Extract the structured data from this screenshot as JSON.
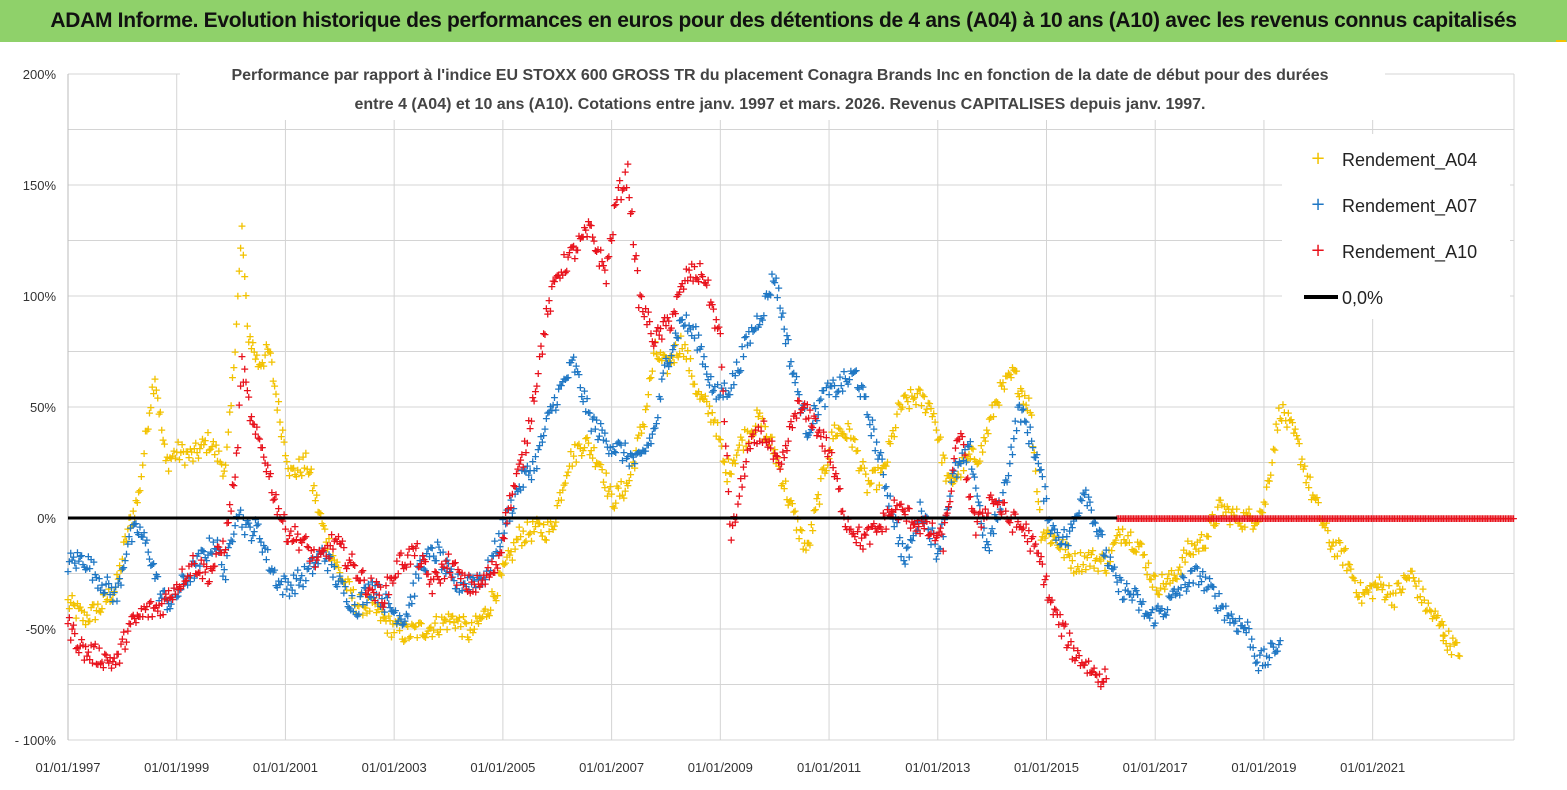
{
  "header": {
    "title": "ADAM Informe. Evolution historique des performances en euros pour des détentions de 4 ans (A04) à 10 ans (A10) avec les revenus connus capitalisés"
  },
  "chart_data": {
    "type": "scatter",
    "title_line1": "Performance par rapport à l'indice EU STOXX 600 GROSS TR  du placement Conagra Brands Inc en fonction de la date de début pour des durées",
    "title_line2": "entre 4 (A04) et 10 ans (A10). Cotations entre janv. 1997 et mars. 2026. Revenus CAPITALISES depuis janv. 1997.",
    "xlabel": "",
    "ylabel": "",
    "xlim": [
      1997.0,
      2023.6
    ],
    "ylim": [
      -100,
      200
    ],
    "grid": true,
    "y_ticks": [
      {
        "value": 200,
        "label": "200%"
      },
      {
        "value": 150,
        "label": "150%"
      },
      {
        "value": 100,
        "label": "100%"
      },
      {
        "value": 50,
        "label": "50%"
      },
      {
        "value": 0,
        "label": "0%"
      },
      {
        "value": -50,
        "label": "-50%"
      },
      {
        "value": -100,
        "label": "- 100%"
      }
    ],
    "x_ticks": [
      {
        "value": 1997,
        "label": "01/01/1997"
      },
      {
        "value": 1999,
        "label": "01/01/1999"
      },
      {
        "value": 2001,
        "label": "01/01/2001"
      },
      {
        "value": 2003,
        "label": "01/01/2003"
      },
      {
        "value": 2005,
        "label": "01/01/2005"
      },
      {
        "value": 2007,
        "label": "01/01/2007"
      },
      {
        "value": 2009,
        "label": "01/01/2009"
      },
      {
        "value": 2011,
        "label": "01/01/2011"
      },
      {
        "value": 2013,
        "label": "01/01/2013"
      },
      {
        "value": 2015,
        "label": "01/01/2015"
      },
      {
        "value": 2017,
        "label": "01/01/2017"
      },
      {
        "value": 2019,
        "label": "01/01/2019"
      },
      {
        "value": 2021,
        "label": "01/01/2021"
      }
    ],
    "legend_position": "top-right",
    "series": [
      {
        "name": "Rendement_A04",
        "color": "#f2c200",
        "marker": "+",
        "x": [
          1997.0,
          1997.3,
          1997.6,
          1997.9,
          1998.1,
          1998.3,
          1998.5,
          1998.6,
          1998.8,
          1999.0,
          1999.3,
          1999.6,
          1999.9,
          2000.0,
          2000.1,
          2000.2,
          2000.3,
          2000.5,
          2000.7,
          2000.9,
          2001.1,
          2001.4,
          2001.7,
          2002.0,
          2002.3,
          2002.6,
          2002.9,
          2003.2,
          2003.5,
          2003.8,
          2004.1,
          2004.4,
          2004.7,
          2005.0,
          2005.3,
          2005.6,
          2005.9,
          2006.2,
          2006.5,
          2006.8,
          2007.0,
          2007.3,
          2007.6,
          2007.8,
          2008.0,
          2008.3,
          2008.6,
          2008.9,
          2009.1,
          2009.4,
          2009.7,
          2010.0,
          2010.3,
          2010.6,
          2010.9,
          2011.1,
          2011.4,
          2011.7,
          2012.0,
          2012.3,
          2012.6,
          2012.9,
          2013.2,
          2013.5,
          2013.8,
          2014.1,
          2014.4,
          2014.7,
          2014.9,
          2015.2,
          2015.5,
          2015.8,
          2016.1,
          2016.4,
          2016.7,
          2017.0,
          2017.3,
          2017.6,
          2017.9,
          2018.2,
          2018.5,
          2018.8,
          2019.0,
          2019.1,
          2019.3,
          2019.6,
          2019.9,
          2020.2,
          2020.5,
          2020.8,
          2021.1,
          2021.4,
          2021.7,
          2022.0,
          2022.3
        ],
        "values": [
          -38,
          -45,
          -40,
          -30,
          -5,
          10,
          50,
          65,
          25,
          30,
          28,
          35,
          22,
          50,
          90,
          130,
          85,
          70,
          75,
          45,
          20,
          25,
          -5,
          -25,
          -38,
          -40,
          -48,
          -52,
          -50,
          -48,
          -45,
          -52,
          -42,
          -25,
          -8,
          -5,
          -5,
          25,
          35,
          25,
          8,
          15,
          45,
          75,
          68,
          80,
          55,
          45,
          20,
          35,
          45,
          30,
          5,
          -15,
          20,
          40,
          38,
          15,
          20,
          50,
          55,
          50,
          15,
          25,
          30,
          55,
          65,
          50,
          -5,
          -10,
          -20,
          -18,
          -20,
          -5,
          -12,
          -30,
          -28,
          -15,
          -10,
          5,
          0,
          0,
          5,
          20,
          50,
          35,
          10,
          -10,
          -18,
          -35,
          -30,
          -35,
          -25,
          -40,
          -50
        ],
        "extra": [
          [
            2022.3,
            -52
          ],
          [
            2022.5,
            -58
          ],
          [
            2022.6,
            -62
          ]
        ]
      },
      {
        "name": "Rendement_A07",
        "color": "#1f77c4",
        "marker": "+",
        "x": [
          1997.0,
          1997.3,
          1997.6,
          1997.9,
          1998.1,
          1998.3,
          1998.5,
          1998.7,
          1998.9,
          1999.1,
          1999.4,
          1999.7,
          1999.9,
          2000.1,
          2000.3,
          2000.5,
          2000.7,
          2000.9,
          2001.1,
          2001.4,
          2001.7,
          2002.0,
          2002.3,
          2002.6,
          2002.9,
          2003.2,
          2003.5,
          2003.8,
          2004.1,
          2004.4,
          2004.7,
          2005.0,
          2005.3,
          2005.6,
          2005.9,
          2006.1,
          2006.3,
          2006.6,
          2006.9,
          2007.2,
          2007.5,
          2007.8,
          2008.0,
          2008.3,
          2008.6,
          2008.9,
          2009.2,
          2009.5,
          2009.8,
          2010.0,
          2010.3,
          2010.6,
          2010.9,
          2011.2,
          2011.5,
          2011.8,
          2012.1,
          2012.4,
          2012.7,
          2013.0,
          2013.3,
          2013.6,
          2013.9,
          2014.2,
          2014.5,
          2014.8,
          2015.1,
          2015.4,
          2015.7,
          2016.0,
          2016.3,
          2016.6,
          2016.9,
          2017.2,
          2017.5,
          2017.8,
          2018.1,
          2018.4,
          2018.7,
          2018.9,
          2019.1,
          2019.3
        ],
        "values": [
          -20,
          -18,
          -28,
          -35,
          -10,
          -5,
          -15,
          -35,
          -38,
          -30,
          -20,
          -10,
          -25,
          5,
          -5,
          -5,
          -20,
          -30,
          -30,
          -25,
          -15,
          -30,
          -40,
          -30,
          -40,
          -45,
          -20,
          -15,
          -30,
          -28,
          -25,
          -5,
          15,
          25,
          50,
          60,
          70,
          45,
          35,
          30,
          25,
          40,
          70,
          90,
          80,
          55,
          60,
          80,
          95,
          110,
          70,
          40,
          55,
          60,
          65,
          40,
          10,
          -20,
          5,
          -15,
          20,
          30,
          -15,
          10,
          50,
          30,
          -5,
          -10,
          15,
          -10,
          -30,
          -35,
          -45,
          -40,
          -30,
          -25,
          -35,
          -45,
          -50,
          -65,
          -62,
          -55
        ]
      },
      {
        "name": "Rendement_A10",
        "color": "#e8121c",
        "marker": "+",
        "x": [
          1997.0,
          1997.3,
          1997.6,
          1997.9,
          1998.1,
          1998.4,
          1998.7,
          1999.0,
          1999.3,
          1999.6,
          1999.9,
          2000.1,
          2000.2,
          2000.4,
          2000.6,
          2000.8,
          2001.0,
          2001.3,
          2001.6,
          2001.9,
          2002.2,
          2002.5,
          2002.8,
          2003.1,
          2003.4,
          2003.7,
          2004.0,
          2004.3,
          2004.6,
          2004.9,
          2005.1,
          2005.4,
          2005.6,
          2005.8,
          2006.0,
          2006.3,
          2006.6,
          2006.9,
          2007.1,
          2007.3,
          2007.5,
          2007.8,
          2008.1,
          2008.4,
          2008.7,
          2009.0,
          2009.2,
          2009.5,
          2009.8,
          2010.1,
          2010.4,
          2010.7,
          2011.0,
          2011.3,
          2011.6,
          2011.9,
          2012.2,
          2012.5,
          2012.8,
          2013.1,
          2013.4,
          2013.7,
          2014.0,
          2014.3,
          2014.6,
          2014.9,
          2015.1,
          2015.3,
          2015.5,
          2015.7,
          2015.9,
          2016.1
        ],
        "values": [
          -48,
          -60,
          -62,
          -65,
          -50,
          -42,
          -40,
          -30,
          -20,
          -25,
          -10,
          25,
          70,
          40,
          30,
          10,
          -5,
          -10,
          -20,
          -10,
          -20,
          -30,
          -35,
          -20,
          -15,
          -30,
          -20,
          -30,
          -30,
          -20,
          5,
          30,
          60,
          90,
          110,
          120,
          130,
          110,
          145,
          155,
          100,
          80,
          90,
          110,
          110,
          80,
          -10,
          30,
          40,
          20,
          50,
          45,
          30,
          0,
          -10,
          -5,
          5,
          0,
          -5,
          -10,
          40,
          -5,
          10,
          0,
          -5,
          -20,
          -40,
          -50,
          -60,
          -65,
          -70,
          -72
        ]
      }
    ],
    "zero_line": {
      "name": "0,0%",
      "value": 0
    }
  },
  "legend": {
    "items": [
      {
        "label": "Rendement_A04",
        "color": "#f2c200"
      },
      {
        "label": "Rendement_A07",
        "color": "#1f77c4"
      },
      {
        "label": "Rendement_A10",
        "color": "#e8121c"
      },
      {
        "label": "0,0%",
        "color": "#000000"
      }
    ]
  }
}
